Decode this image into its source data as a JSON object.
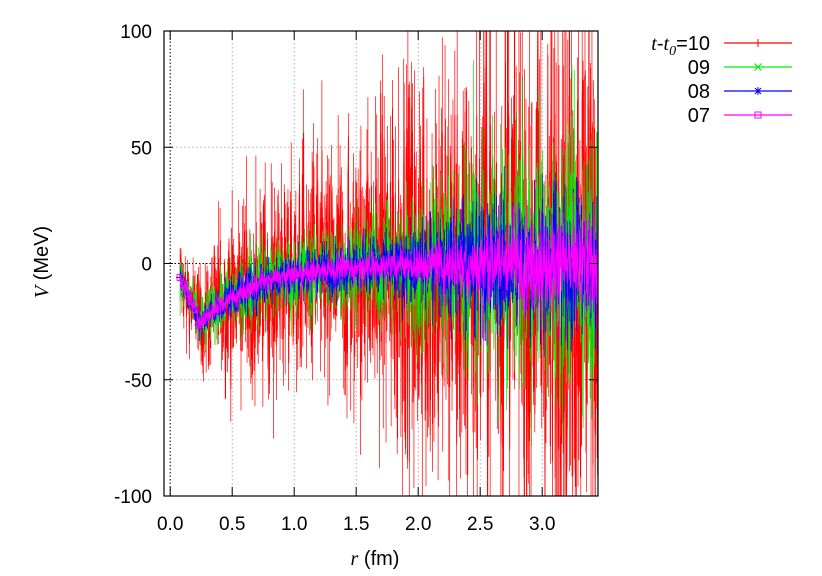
{
  "chart_data": {
    "type": "line",
    "title": "",
    "xlabel": {
      "var": "r",
      "unit": "(fm)"
    },
    "ylabel": {
      "var": "V",
      "unit": "(MeV)"
    },
    "xlim": [
      -0.05,
      3.45
    ],
    "ylim": [
      -100,
      100
    ],
    "xticks": [
      0.0,
      0.5,
      1.0,
      1.5,
      2.0,
      2.5,
      3.0
    ],
    "xtick_labels": [
      "0.0",
      "0.5",
      "1.0",
      "1.5",
      "2.0",
      "2.5",
      "3.0"
    ],
    "yticks": [
      -100,
      -50,
      0,
      50,
      100
    ],
    "ytick_labels": [
      "-100",
      "-50",
      "0",
      "50",
      "100"
    ],
    "grid": true,
    "legend_position": "top-right, outside plot",
    "legend_prefix": {
      "t": "t",
      "dash": "-",
      "t0": "t",
      "sub": "0",
      "eq": "="
    },
    "series": [
      {
        "name": "10",
        "color": "#ff0000",
        "marker": "plus",
        "r_range": [
          0.08,
          3.45
        ],
        "trend": "V ≈ -27 exp(-r/0.45) near origin, approaching 0 at large r",
        "spread_MeV": [
          [
            0.2,
            15
          ],
          [
            0.5,
            30
          ],
          [
            1.0,
            38
          ],
          [
            1.5,
            45
          ],
          [
            2.0,
            70
          ],
          [
            2.5,
            80
          ],
          [
            3.0,
            100
          ],
          [
            3.45,
            95
          ]
        ]
      },
      {
        "name": "09",
        "color": "#00ee00",
        "marker": "cross",
        "r_range": [
          0.08,
          3.45
        ],
        "trend": "same central trend",
        "spread_MeV": [
          [
            0.2,
            8
          ],
          [
            0.5,
            12
          ],
          [
            1.0,
            14
          ],
          [
            1.5,
            16
          ],
          [
            2.0,
            25
          ],
          [
            2.5,
            35
          ],
          [
            3.0,
            40
          ],
          [
            3.45,
            45
          ]
        ]
      },
      {
        "name": "08",
        "color": "#0000ff",
        "marker": "star",
        "r_range": [
          0.08,
          3.45
        ],
        "trend": "same central trend",
        "spread_MeV": [
          [
            0.2,
            5
          ],
          [
            0.5,
            7
          ],
          [
            1.0,
            8
          ],
          [
            1.5,
            9
          ],
          [
            2.0,
            12
          ],
          [
            2.5,
            22
          ],
          [
            3.0,
            22
          ],
          [
            3.45,
            24
          ]
        ]
      },
      {
        "name": "07",
        "color": "#ff00ff",
        "marker": "square",
        "r_range": [
          0.08,
          3.45
        ],
        "trend": "same central trend",
        "spread_MeV": [
          [
            0.2,
            3
          ],
          [
            0.5,
            4
          ],
          [
            1.0,
            4
          ],
          [
            1.5,
            5
          ],
          [
            2.0,
            6
          ],
          [
            2.5,
            13
          ],
          [
            3.0,
            16
          ],
          [
            3.45,
            18
          ]
        ]
      }
    ]
  }
}
